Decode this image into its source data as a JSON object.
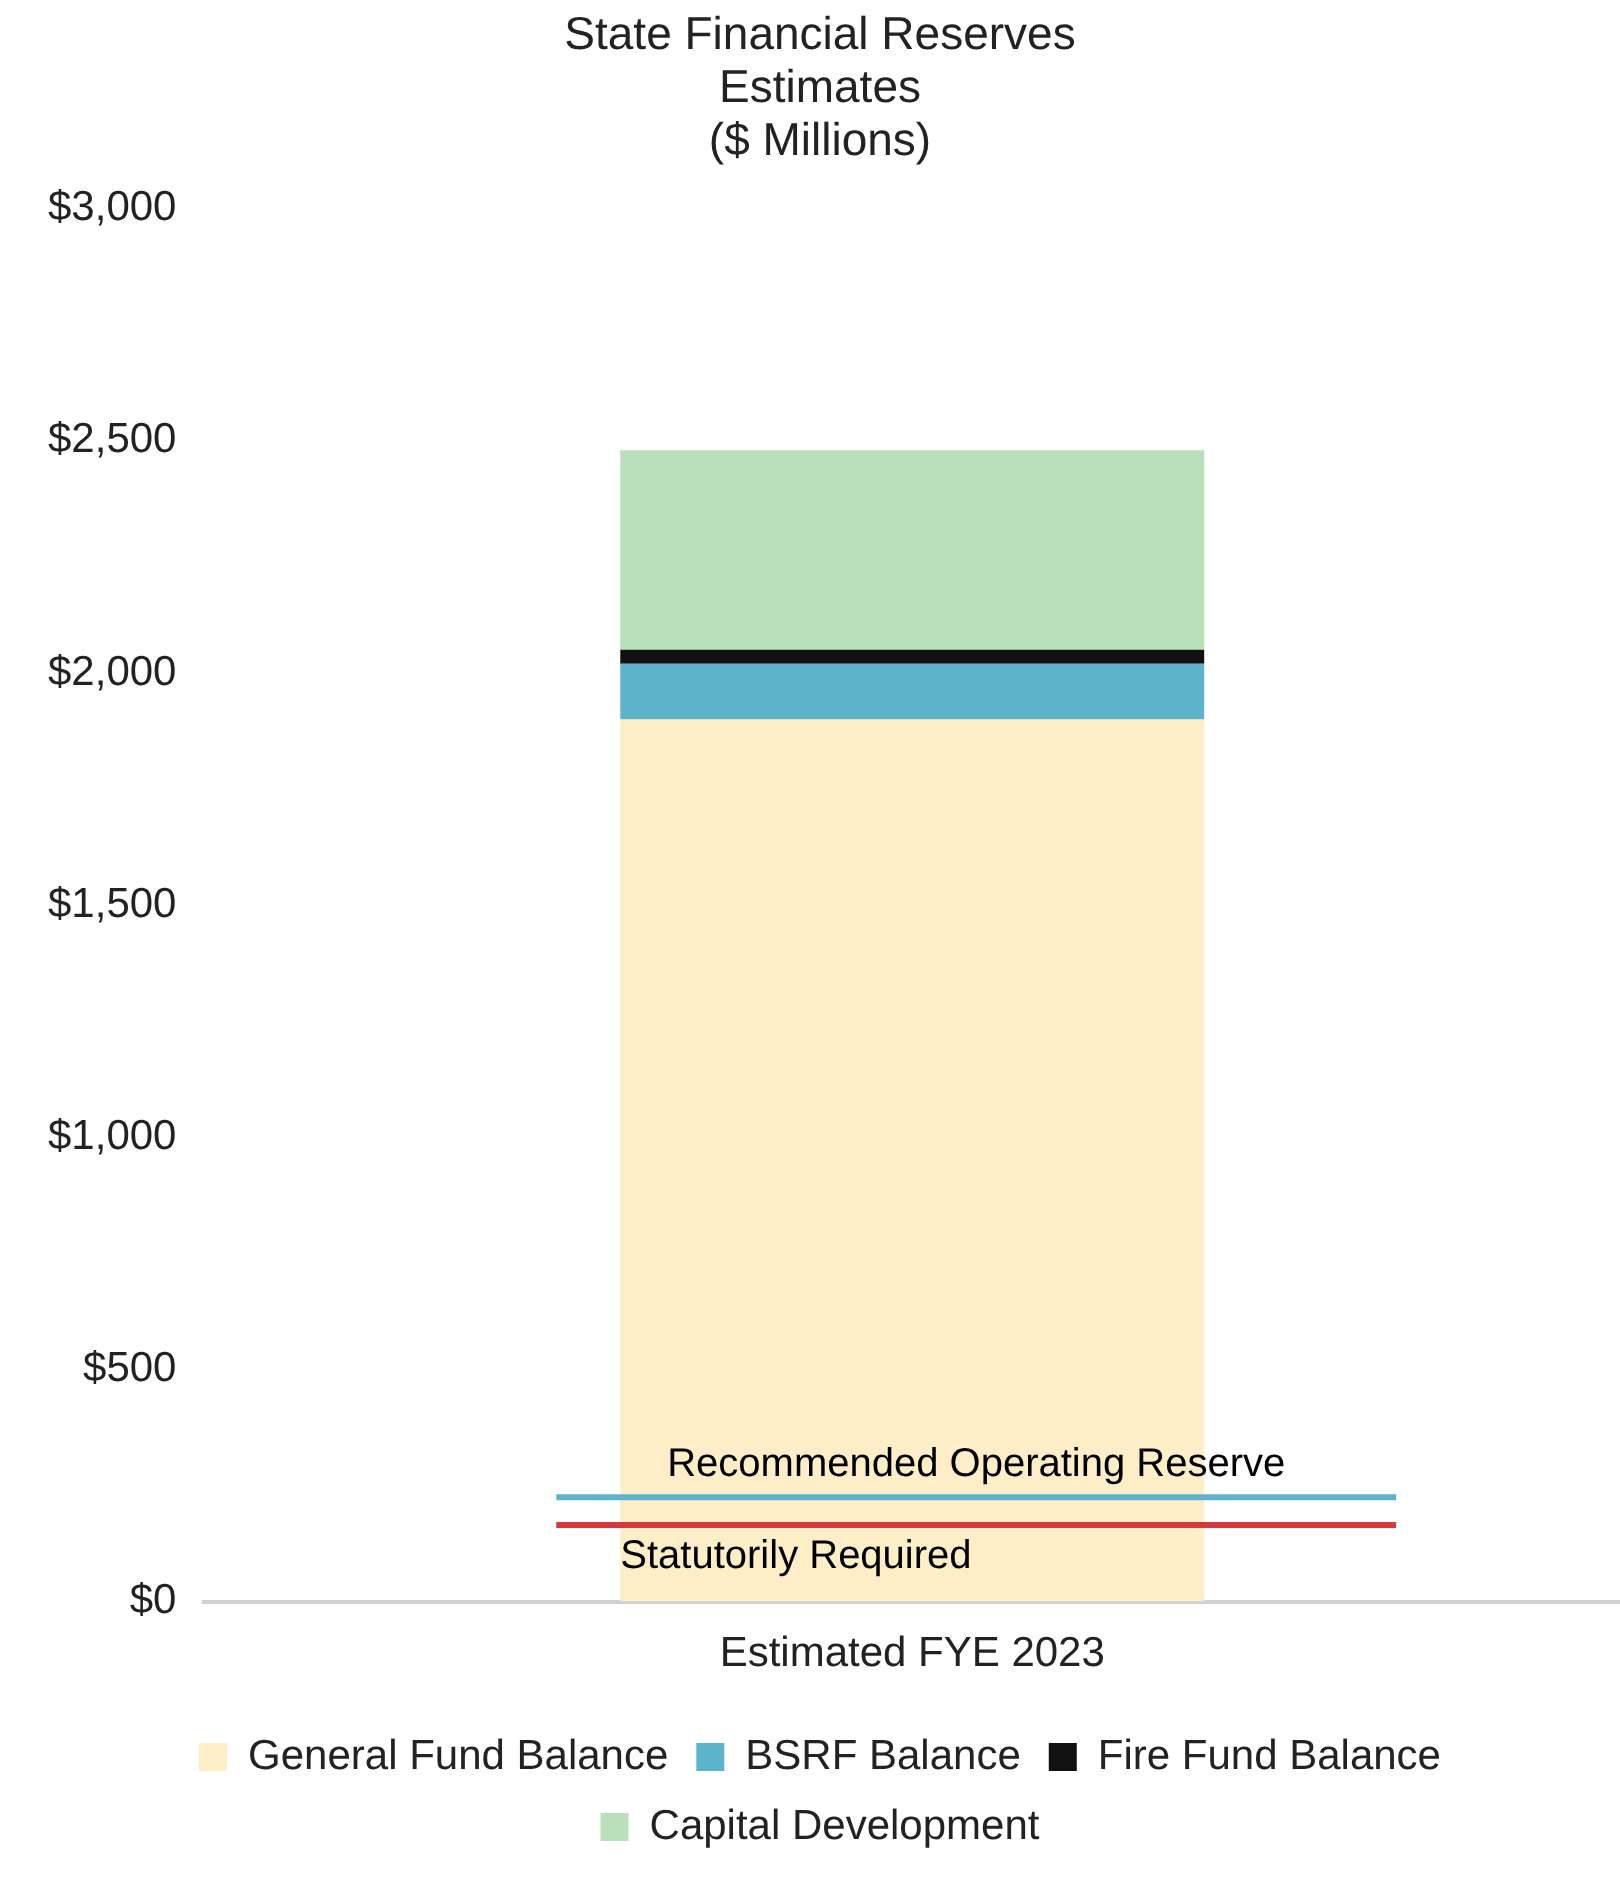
{
  "chart_data": {
    "type": "bar",
    "title": "State Financial Reserves\nEstimates\n($ Millions)",
    "categories": [
      "Estimated FYE 2023"
    ],
    "stacked": true,
    "series": [
      {
        "name": "General Fund Balance",
        "color": "#fdeec8",
        "values": [
          1900
        ]
      },
      {
        "name": "BSRF Balance",
        "color": "#5eb3cc",
        "values": [
          120
        ]
      },
      {
        "name": "Fire Fund Balance",
        "color": "#111111",
        "values": [
          30
        ]
      },
      {
        "name": "Capital Development",
        "color": "#b9e0b9",
        "values": [
          430
        ]
      }
    ],
    "ylim": [
      0,
      3000
    ],
    "yticks": [
      {
        "value": 0,
        "label": "$0"
      },
      {
        "value": 500,
        "label": "$500"
      },
      {
        "value": 1000,
        "label": "$1,000"
      },
      {
        "value": 1500,
        "label": "$1,500"
      },
      {
        "value": 2000,
        "label": "$2,000"
      },
      {
        "value": 2500,
        "label": "$2,500"
      },
      {
        "value": 3000,
        "label": "$3,000"
      }
    ],
    "grid": false,
    "legend": "bottom",
    "ref_lines": [
      {
        "axis": "y",
        "value": 225,
        "label": "Recommended Operating Reserve",
        "color": "#5eb3cc"
      },
      {
        "axis": "y",
        "value": 165,
        "label": "Statutorily Required",
        "color": "#d9383a"
      }
    ]
  }
}
